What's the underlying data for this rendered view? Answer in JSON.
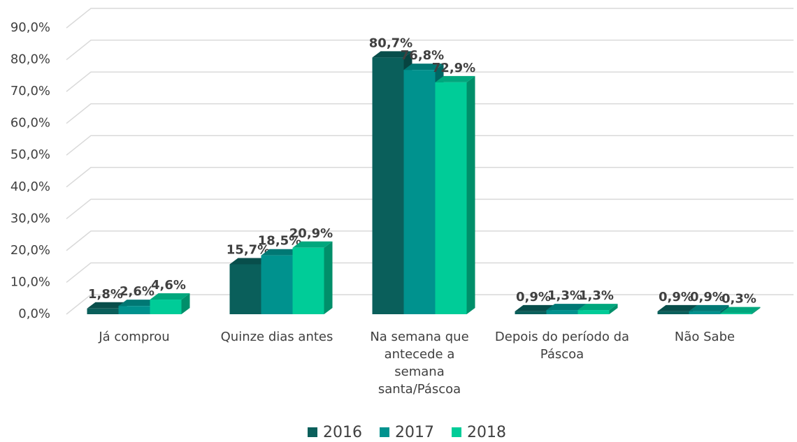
{
  "chart_data": {
    "type": "bar3d",
    "categories": [
      "Já comprou",
      "Quinze dias antes",
      "Na semana que antecede a semana santa/Páscoa",
      "Depois do período da Páscoa",
      "Não Sabe"
    ],
    "series": [
      {
        "name": "2016",
        "color": "#0a5f5b",
        "values": [
          1.8,
          15.7,
          80.7,
          0.9,
          0.9
        ],
        "value_labels": [
          "1,8%",
          "15,7%",
          "80,7%",
          "0,9%",
          "0,9%"
        ]
      },
      {
        "name": "2017",
        "color": "#00928e",
        "values": [
          2.6,
          18.5,
          76.8,
          1.3,
          0.9
        ],
        "value_labels": [
          "2,6%",
          "18,5%",
          "76,8%",
          "1,3%",
          "0,9%"
        ]
      },
      {
        "name": "2018",
        "color": "#00cc98",
        "values": [
          4.6,
          20.9,
          72.9,
          1.3,
          0.3
        ],
        "value_labels": [
          "4,6%",
          "20,9%",
          "72,9%",
          "1,3%",
          "0,3%"
        ]
      }
    ],
    "ylim": [
      0,
      90
    ],
    "yticks": [
      {
        "value": 0,
        "label": "0,0%"
      },
      {
        "value": 10,
        "label": "10,0%"
      },
      {
        "value": 20,
        "label": "20,0%"
      },
      {
        "value": 30,
        "label": "30,0%"
      },
      {
        "value": 40,
        "label": "40,0%"
      },
      {
        "value": 50,
        "label": "50,0%"
      },
      {
        "value": 60,
        "label": "60,0%"
      },
      {
        "value": 70,
        "label": "70,0%"
      },
      {
        "value": 80,
        "label": "80,0%"
      },
      {
        "value": 90,
        "label": "90,0%"
      }
    ],
    "grid": true,
    "legend": "bottom"
  }
}
